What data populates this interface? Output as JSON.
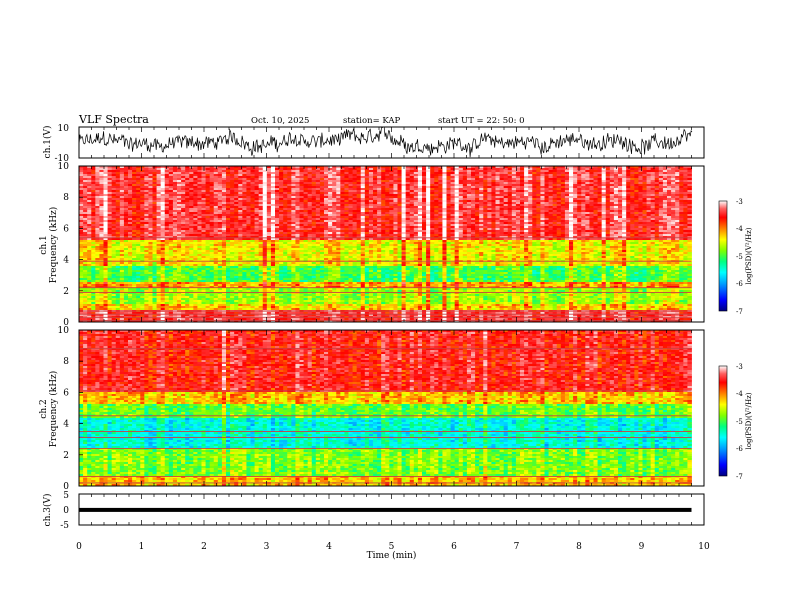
{
  "header": {
    "title": "VLF Spectra",
    "date": "Oct. 10, 2025",
    "station": "station= KAP",
    "start_ut": "start  UT  =   22: 50: 0"
  },
  "colors": {
    "scale": [
      "#000080",
      "#0000ff",
      "#00a0ff",
      "#00ffff",
      "#00ff80",
      "#80ff00",
      "#ffff00",
      "#ff8000",
      "#ff0000",
      "#ff6060",
      "#ffffff"
    ],
    "trace": "#000000",
    "line_band": "#c84040"
  },
  "chart_data": [
    {
      "id": "ch1-waveform",
      "type": "line",
      "ylabel": "ch.1(V)",
      "ylim": [
        -10,
        10
      ],
      "yticks": [
        "10",
        "-10"
      ],
      "xlim": [
        0,
        10
      ],
      "description_series": "noisy signal oscillating mostly between -6 and 8 V over the full record"
    },
    {
      "id": "ch1-spectrogram",
      "type": "heatmap",
      "ylabel_top": "ch.1",
      "ylabel": "Frequency  (kHz)",
      "ylim": [
        0,
        10
      ],
      "yticks": [
        "0",
        "2",
        "4",
        "6",
        "8",
        "10"
      ],
      "xlim": [
        0,
        9.8
      ],
      "band_levels": [
        {
          "f_lo": 0.0,
          "f_hi": 0.8,
          "level": -3.6
        },
        {
          "f_lo": 0.8,
          "f_hi": 1.2,
          "level": -4.5
        },
        {
          "f_lo": 1.2,
          "f_hi": 2.2,
          "level": -4.9
        },
        {
          "f_lo": 2.2,
          "f_hi": 2.6,
          "level": -4.3
        },
        {
          "f_lo": 2.6,
          "f_hi": 3.6,
          "level": -5.2
        },
        {
          "f_lo": 3.6,
          "f_hi": 5.3,
          "level": -4.6
        },
        {
          "f_lo": 5.3,
          "f_hi": 10.0,
          "level": -3.6
        }
      ],
      "narrowband_lines_khz": [
        0.1,
        0.3,
        0.5,
        0.7,
        1.9,
        2.2,
        3.9,
        5.4
      ],
      "colorbar": {
        "label": "log(PSD)(V²/Hz)",
        "range": [
          -7,
          -3
        ],
        "ticks": [
          "-3",
          "-4",
          "-5",
          "-6",
          "-7"
        ]
      }
    },
    {
      "id": "ch2-spectrogram",
      "type": "heatmap",
      "ylabel_top": "ch.2",
      "ylabel": "Frequency  (kHz)",
      "ylim": [
        0,
        10
      ],
      "yticks": [
        "0",
        "2",
        "4",
        "6",
        "8",
        "10"
      ],
      "xlim": [
        0,
        9.8
      ],
      "band_levels": [
        {
          "f_lo": 0.0,
          "f_hi": 0.7,
          "level": -4.4
        },
        {
          "f_lo": 0.7,
          "f_hi": 2.0,
          "level": -5.0
        },
        {
          "f_lo": 2.0,
          "f_hi": 2.5,
          "level": -5.0
        },
        {
          "f_lo": 2.5,
          "f_hi": 4.4,
          "level": -5.7
        },
        {
          "f_lo": 4.4,
          "f_hi": 5.2,
          "level": -5.1
        },
        {
          "f_lo": 5.2,
          "f_hi": 6.0,
          "level": -4.4
        },
        {
          "f_lo": 6.0,
          "f_hi": 10.0,
          "level": -3.7
        }
      ],
      "narrowband_lines_khz": [
        0.2,
        0.6,
        2.4,
        3.1,
        3.5,
        4.5,
        6.1,
        8.8
      ],
      "colorbar": {
        "label": "log(PSD)(V²/Hz)",
        "range": [
          -7,
          -3
        ],
        "ticks": [
          "-3",
          "-4",
          "-5",
          "-6",
          "-7"
        ]
      }
    },
    {
      "id": "ch3-waveform",
      "type": "line",
      "ylabel": "ch.3(V)",
      "ylim": [
        -5,
        5
      ],
      "yticks": [
        "5",
        "0",
        "-5"
      ],
      "xlim": [
        0,
        10
      ],
      "band_center": 0,
      "band_halfwidth": 0.5
    }
  ],
  "xaxis": {
    "label": "Time  (min)",
    "ticks": [
      "0",
      "1",
      "2",
      "3",
      "4",
      "5",
      "6",
      "7",
      "8",
      "9",
      "10"
    ],
    "xlim": [
      0,
      10
    ]
  }
}
